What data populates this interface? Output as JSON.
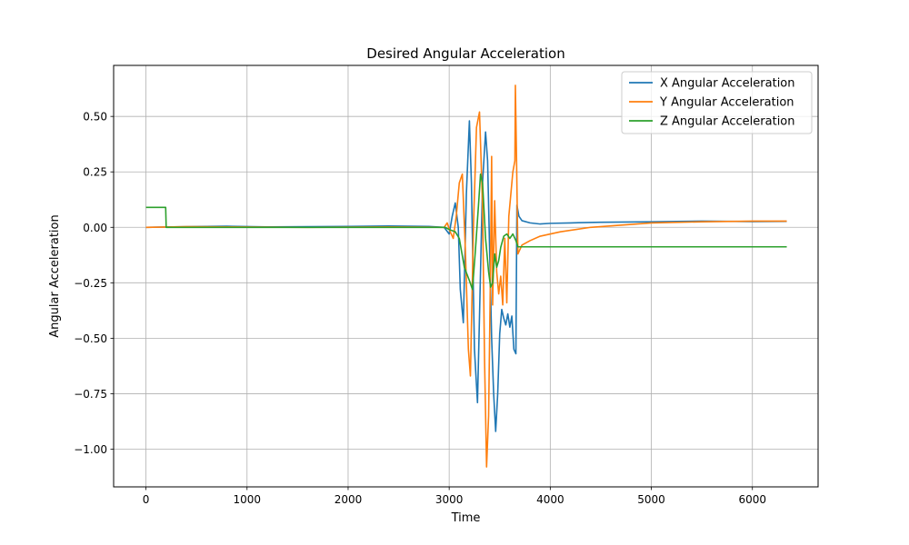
{
  "chart_data": {
    "type": "line",
    "title": "Desired Angular Acceleration",
    "xlabel": "Time",
    "ylabel": "Angular Acceleration",
    "xlim": [
      -320,
      6650
    ],
    "ylim": [
      -1.17,
      0.73
    ],
    "xticks": [
      0,
      1000,
      2000,
      3000,
      4000,
      5000,
      6000
    ],
    "yticks": [
      -1.0,
      -0.75,
      -0.5,
      -0.25,
      0.0,
      0.25,
      0.5
    ],
    "xtick_labels": [
      "0",
      "1000",
      "2000",
      "3000",
      "4000",
      "5000",
      "6000"
    ],
    "ytick_labels": [
      "−1.00",
      "−0.75",
      "−0.50",
      "−0.25",
      "0.00",
      "0.25",
      "0.50"
    ],
    "grid": true,
    "legend_position": "top-right",
    "series": [
      {
        "name": "X Angular Acceleration",
        "color": "#1f77b4",
        "x": [
          0,
          400,
          800,
          1200,
          1600,
          2000,
          2400,
          2800,
          2950,
          3000,
          3030,
          3060,
          3090,
          3110,
          3140,
          3170,
          3200,
          3220,
          3250,
          3280,
          3300,
          3330,
          3360,
          3380,
          3400,
          3420,
          3440,
          3460,
          3480,
          3500,
          3520,
          3540,
          3560,
          3580,
          3600,
          3620,
          3640,
          3660,
          3670,
          3690,
          3720,
          3800,
          3900,
          4000,
          4200,
          4500,
          5000,
          5500,
          6000,
          6340
        ],
        "y": [
          0.0,
          0.003,
          0.005,
          0.002,
          0.003,
          0.004,
          0.006,
          0.004,
          0.0,
          -0.03,
          0.05,
          0.11,
          0.0,
          -0.28,
          -0.43,
          0.15,
          0.48,
          0.2,
          -0.55,
          -0.79,
          -0.4,
          0.2,
          0.43,
          0.3,
          -0.1,
          -0.5,
          -0.75,
          -0.92,
          -0.75,
          -0.48,
          -0.37,
          -0.41,
          -0.44,
          -0.39,
          -0.45,
          -0.4,
          -0.55,
          -0.57,
          0.1,
          0.05,
          0.03,
          0.02,
          0.015,
          0.018,
          0.02,
          0.023,
          0.025,
          0.028,
          0.026,
          0.027
        ]
      },
      {
        "name": "Y Angular Acceleration",
        "color": "#ff7f0e",
        "x": [
          0,
          400,
          800,
          1200,
          1600,
          2000,
          2400,
          2800,
          2950,
          2980,
          3010,
          3040,
          3070,
          3100,
          3130,
          3160,
          3190,
          3210,
          3240,
          3270,
          3300,
          3330,
          3350,
          3370,
          3390,
          3410,
          3420,
          3430,
          3450,
          3470,
          3490,
          3510,
          3530,
          3550,
          3570,
          3590,
          3610,
          3630,
          3650,
          3655,
          3665,
          3680,
          3720,
          3800,
          3900,
          4100,
          4400,
          5000,
          5500,
          6000,
          6340
        ],
        "y": [
          0.0,
          0.003,
          0.002,
          0.001,
          0.0,
          0.001,
          0.002,
          0.001,
          0.0,
          0.02,
          -0.02,
          -0.05,
          0.05,
          0.2,
          0.24,
          -0.1,
          -0.55,
          -0.67,
          0.0,
          0.45,
          0.52,
          0.1,
          -0.6,
          -1.08,
          -0.85,
          -0.15,
          0.32,
          -0.35,
          0.12,
          -0.2,
          -0.3,
          -0.22,
          -0.35,
          -0.05,
          -0.34,
          0.05,
          0.15,
          0.25,
          0.3,
          0.64,
          0.35,
          -0.12,
          -0.08,
          -0.06,
          -0.04,
          -0.02,
          0.0,
          0.02,
          0.025,
          0.028,
          0.028
        ]
      },
      {
        "name": "Z Angular Acceleration",
        "color": "#2ca02c",
        "x": [
          0,
          195,
          200,
          205,
          600,
          1200,
          2000,
          2600,
          2900,
          2960,
          3000,
          3060,
          3100,
          3150,
          3200,
          3230,
          3260,
          3290,
          3310,
          3330,
          3360,
          3390,
          3410,
          3430,
          3450,
          3470,
          3490,
          3510,
          3540,
          3570,
          3600,
          3630,
          3660,
          3680,
          3700,
          4000,
          5000,
          6000,
          6340
        ],
        "y": [
          0.09,
          0.09,
          0.0,
          0.0,
          0.0,
          0.0,
          0.0,
          0.0,
          0.0,
          0.0,
          -0.01,
          -0.02,
          -0.05,
          -0.18,
          -0.24,
          -0.28,
          -0.1,
          0.1,
          0.24,
          0.2,
          -0.05,
          -0.2,
          -0.27,
          -0.25,
          -0.12,
          -0.18,
          -0.15,
          -0.09,
          -0.04,
          -0.03,
          -0.05,
          -0.03,
          -0.06,
          -0.088,
          -0.088,
          -0.088,
          -0.088,
          -0.088,
          -0.088
        ]
      }
    ]
  }
}
